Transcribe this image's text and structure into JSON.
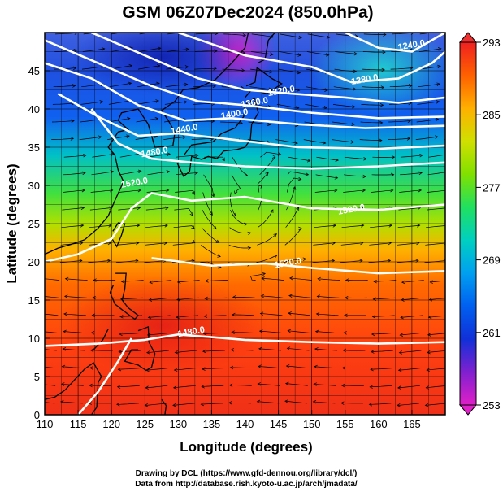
{
  "chart_data": {
    "type": "heatmap",
    "title": "GSM 06Z07Dec2024 (850.0hPa)",
    "xlabel": "Longitude (degrees)",
    "ylabel": "Latitude  (degrees)",
    "xlim": [
      110,
      170
    ],
    "ylim": [
      0,
      50
    ],
    "x_ticks": [
      "110",
      "115",
      "120",
      "125",
      "130",
      "135",
      "140",
      "145",
      "150",
      "155",
      "160",
      "165"
    ],
    "y_ticks": [
      "0",
      "5",
      "10",
      "15",
      "20",
      "25",
      "30",
      "35",
      "40",
      "45"
    ],
    "grid": true,
    "fill_field": {
      "description_unit": "K",
      "colorbar_range": [
        253,
        293
      ],
      "colorbar_ticks": [
        "253",
        "261",
        "269",
        "277",
        "285",
        "293"
      ],
      "colormap": [
        "#e020c8",
        "#8020d0",
        "#1030d8",
        "#0060f0",
        "#00a0f0",
        "#00d0c0",
        "#20e060",
        "#80e000",
        "#d0e000",
        "#ffb000",
        "#ff6000",
        "#f02020"
      ]
    },
    "contours": [
      {
        "label": "1280.0",
        "value": 1280,
        "label_at": [
          158,
          43.5
        ]
      },
      {
        "label": "1320.0",
        "value": 1320,
        "label_at": [
          145.5,
          42
        ]
      },
      {
        "label": "1360.0",
        "value": 1360,
        "label_at": [
          141.5,
          40.5
        ]
      },
      {
        "label": "1400.0",
        "value": 1400,
        "label_at": [
          138.5,
          39
        ]
      },
      {
        "label": "1440.0",
        "value": 1440,
        "label_at": [
          131,
          37
        ]
      },
      {
        "label": "1480.0",
        "value": 1480,
        "label_at": [
          126.5,
          34
        ]
      },
      {
        "label": "1520.0",
        "value": 1520,
        "label_at": [
          123.5,
          30
        ]
      },
      {
        "label": "1520.0",
        "value": 1520,
        "label_at": [
          156,
          26.5
        ]
      },
      {
        "label": "1520.0",
        "value": 1520,
        "label_at": [
          146.5,
          19.5
        ]
      },
      {
        "label": "1480.0",
        "value": 1480,
        "label_at": [
          132,
          10.5
        ]
      },
      {
        "label": "1240.0",
        "value": 1240,
        "label_at": [
          165,
          48
        ]
      }
    ],
    "vectors": "streamlines"
  },
  "credits": {
    "line1": "Drawing by DCL (https://www.gfd-dennou.org/library/dcl/)",
    "line2": "Data from http://database.rish.kyoto-u.ac.jp/arch/jmadata/"
  },
  "colors": {
    "contour": "#ffffff",
    "coast": "#000000",
    "streamline": "#000000"
  }
}
